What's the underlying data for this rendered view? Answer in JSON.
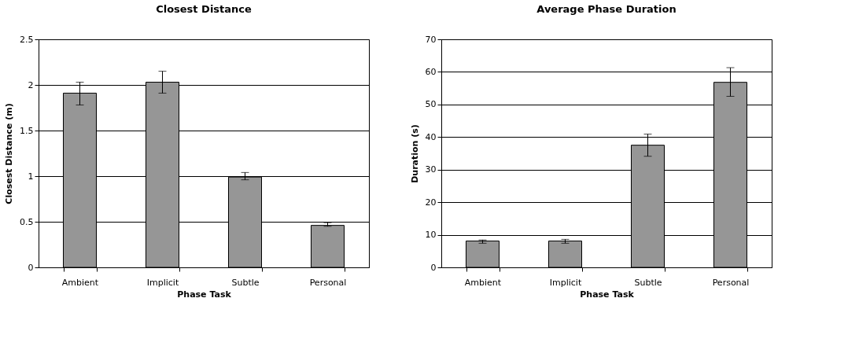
{
  "chart_data": [
    {
      "type": "bar",
      "title": "Closest Distance",
      "xlabel": "Phase Task",
      "ylabel": "Closest Distance (m)",
      "categories": [
        "Ambient",
        "Implicit",
        "Subtle",
        "Personal"
      ],
      "values": [
        1.91,
        2.03,
        0.99,
        0.46
      ],
      "errors": [
        [
          1.78,
          2.03
        ],
        [
          1.91,
          2.15
        ],
        [
          0.96,
          1.04
        ],
        [
          0.45,
          0.49
        ]
      ],
      "color": "#969696",
      "ylim": [
        0,
        2.5
      ],
      "yticks": [
        0,
        0.5,
        1,
        1.5,
        2,
        2.5
      ],
      "grid": "y"
    },
    {
      "type": "bar",
      "title": "Average Phase Duration",
      "xlabel": "Phase Task",
      "ylabel": "Duration (s)",
      "categories": [
        "Ambient",
        "Implicit",
        "Subtle",
        "Personal"
      ],
      "values": [
        8.1,
        8.1,
        37.5,
        56.8
      ],
      "errors": [
        [
          7.4,
          8.4
        ],
        [
          7.4,
          8.6
        ],
        [
          34.1,
          40.9
        ],
        [
          52.5,
          61.3
        ]
      ],
      "color": "#969696",
      "ylim": [
        0,
        70
      ],
      "yticks": [
        0,
        10,
        20,
        30,
        40,
        50,
        60,
        70
      ],
      "grid": "y"
    }
  ]
}
